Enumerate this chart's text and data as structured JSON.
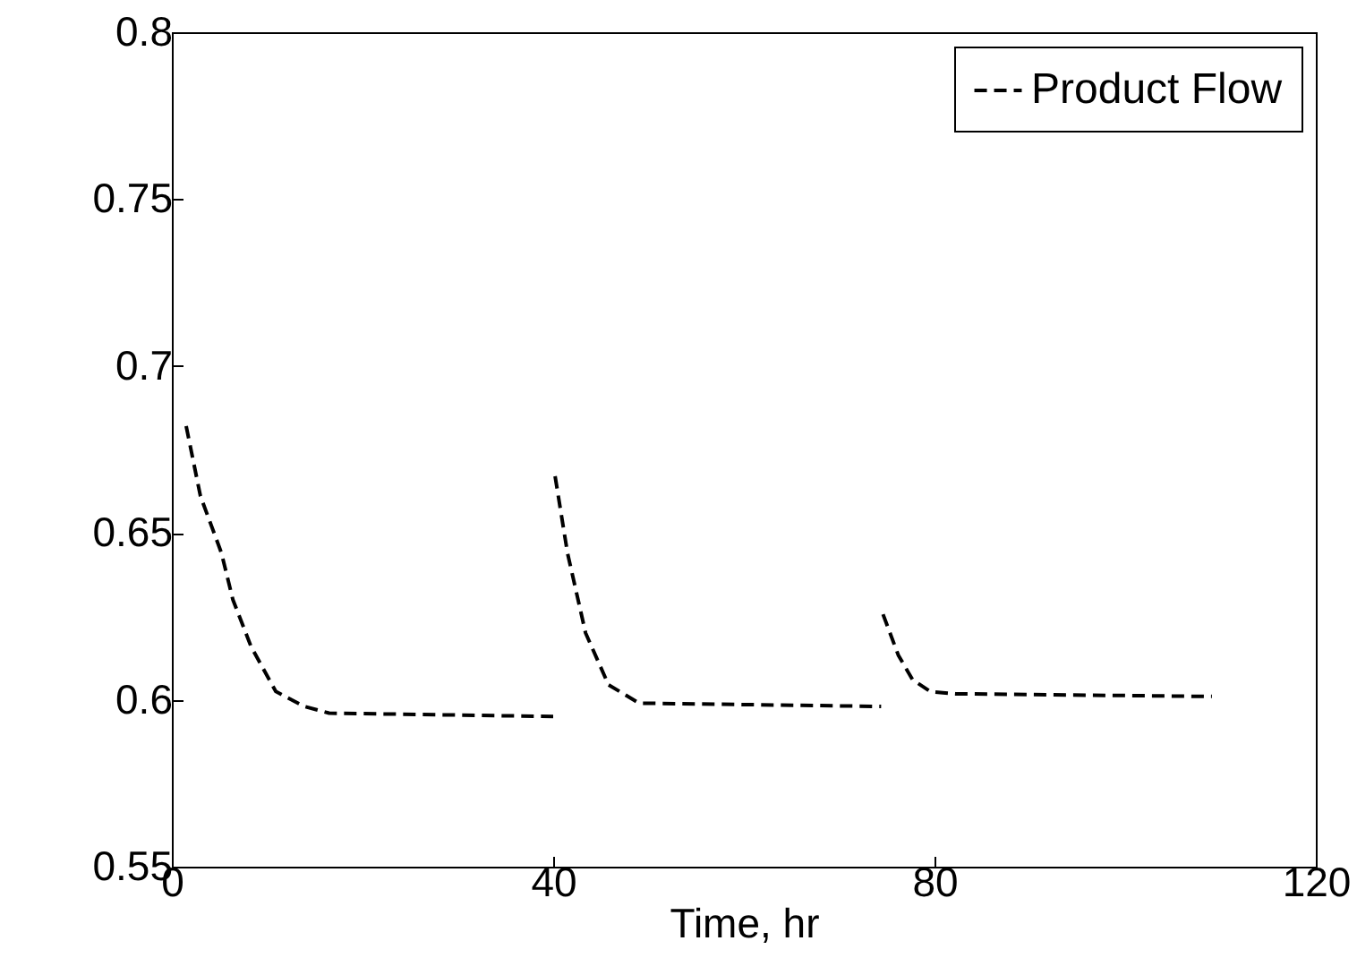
{
  "chart_data": {
    "type": "line",
    "xlabel": "Time, hr",
    "x": [
      1.5,
      3,
      5.2,
      6.4,
      8.3,
      10.9,
      13.9,
      16.5,
      40,
      40.1,
      40.2,
      41.5,
      43.4,
      45.8,
      49,
      74.4,
      74.5,
      74.6,
      76.2,
      77.7,
      79.6,
      82.2,
      109.1
    ],
    "series": [
      {
        "name": "Product Flow",
        "color": "#000000",
        "values": [
          0.682,
          0.661,
          0.644,
          0.63,
          0.616,
          0.6025,
          0.598,
          0.596,
          0.595,
          null,
          0.667,
          0.644,
          0.62,
          0.6045,
          0.599,
          0.598,
          null,
          0.6256,
          0.6134,
          0.606,
          0.6024,
          0.6018,
          0.601
        ]
      }
    ],
    "xlim": [
      0,
      120
    ],
    "xticks": [
      0,
      40,
      80,
      120
    ],
    "ylim": [
      0.55,
      0.8
    ],
    "yticks": [
      0.55,
      {
        "value": 0.6,
        "label": "0.6"
      },
      0.65,
      {
        "value": 0.7,
        "label": "0.7"
      },
      0.75,
      {
        "value": 0.8,
        "label": "0.8"
      }
    ],
    "grid": false,
    "legend": "top right",
    "line_style": "dashed",
    "marker": "none"
  }
}
